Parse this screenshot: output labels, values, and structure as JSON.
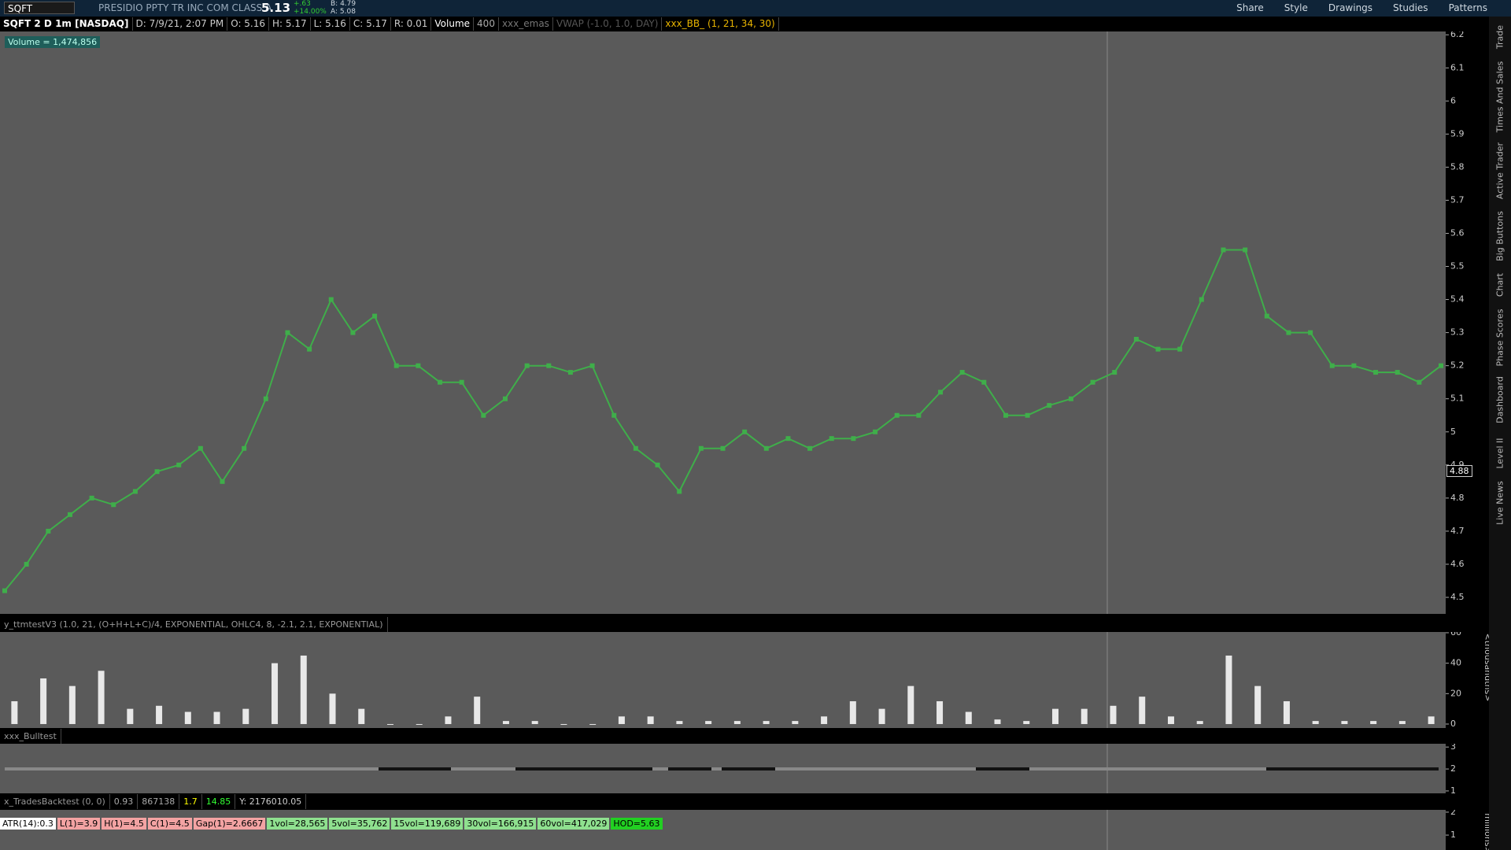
{
  "toolbar": {
    "symbol": "SQFT",
    "company": "PRESIDIO PPTY TR INC COM CLASS A",
    "last": "5.13",
    "change": "+.63",
    "change_pct": "+14.00%",
    "bid": "B: 4.79",
    "ask": "A: 5.08",
    "buttons": [
      "Share",
      "Style",
      "Drawings",
      "Studies",
      "Patterns"
    ]
  },
  "info_bar": [
    "SQFT 2 D 1m [NASDAQ]",
    "D: 7/9/21, 2:07 PM",
    "O: 5.16",
    "H: 5.17",
    "L: 5.16",
    "C: 5.17",
    "R: 0.01",
    "Volume",
    "400",
    "xxx_emas",
    "VWAP (-1.0, 1.0, DAY)",
    "xxx_BB_ (1, 21, 34, 30)"
  ],
  "volume_label": "Volume = 1,474,856",
  "price_marker": "4.88",
  "side_tabs": [
    "Trade",
    "Times And Sales",
    "Active Trader",
    "Big Buttons",
    "Chart",
    "Phase Scores",
    "Dashboard",
    "Level II",
    "Live News"
  ],
  "chart_data": [
    {
      "type": "line",
      "color": "#3fae4a",
      "ylim": [
        4.45,
        6.21
      ],
      "yticks": [
        6.2,
        6.1,
        6,
        5.9,
        5.8,
        5.7,
        5.6,
        5.5,
        5.4,
        5.3,
        5.2,
        5.1,
        5,
        4.9,
        4.8,
        4.7,
        4.6,
        4.5
      ],
      "values": [
        4.52,
        4.6,
        4.7,
        4.75,
        4.8,
        4.78,
        4.82,
        4.88,
        4.9,
        4.95,
        4.85,
        4.95,
        5.1,
        5.3,
        5.25,
        5.4,
        5.3,
        5.35,
        5.2,
        5.2,
        5.15,
        5.15,
        5.05,
        5.1,
        5.2,
        5.2,
        5.18,
        5.2,
        5.05,
        4.95,
        4.9,
        4.82,
        4.95,
        4.95,
        5.0,
        4.95,
        4.98,
        4.95,
        4.98,
        4.98,
        5.0,
        5.05,
        5.05,
        5.12,
        5.18,
        5.15,
        5.05,
        5.05,
        5.08,
        5.1,
        5.15,
        5.18,
        5.28,
        5.25,
        5.25,
        5.4,
        5.55,
        5.55,
        5.35,
        5.3,
        5.3,
        5.2,
        5.2,
        5.18,
        5.18,
        5.15,
        5.2
      ]
    },
    {
      "type": "bar",
      "title": "y_ttmtestV3 (1.0, 21, (O+H+L+C)/4, EXPONENTIAL, OHLC4, 8, -2.1, 2.1, EXPONENTIAL)",
      "y_label": "<thousandths>",
      "color": "#e8e8e8",
      "ylim": [
        -2.6,
        60.5
      ],
      "yticks": [
        60,
        40,
        20,
        0
      ],
      "values": [
        15,
        30,
        25,
        35,
        10,
        12,
        8,
        8,
        10,
        40,
        45,
        20,
        10,
        0,
        0,
        5,
        18,
        2,
        2,
        0,
        0,
        5,
        5,
        2,
        2,
        2,
        2,
        2,
        5,
        15,
        10,
        25,
        15,
        8,
        3,
        2,
        10,
        10,
        12,
        18,
        5,
        2,
        45,
        25,
        15,
        2,
        2,
        2,
        2,
        5
      ]
    }
  ],
  "bulltest": {
    "title": "xxx_Bulltest",
    "ylim": [
      0.89,
      3.15
    ],
    "yticks": [
      3,
      2,
      1
    ]
  },
  "backtest": {
    "title": [
      "x_TradesBacktest (0, 0)",
      "0.93",
      "867138",
      "1.7",
      "14.85",
      "Y: 2176010.05"
    ],
    "ylim": [
      0.35,
      2.1
    ],
    "yticks": [
      2,
      1
    ],
    "y_label": "millions>",
    "labels": [
      "ATR(14):0.3",
      "L(1)=3.9",
      "H(1)=4.5",
      "C(1)=4.5",
      "Gap(1)=2.6667",
      "1vol=28,565",
      "5vol=35,762",
      "15vol=119,689",
      "30vol=166,915",
      "60vol=417,029",
      "HOD=5.63"
    ]
  }
}
